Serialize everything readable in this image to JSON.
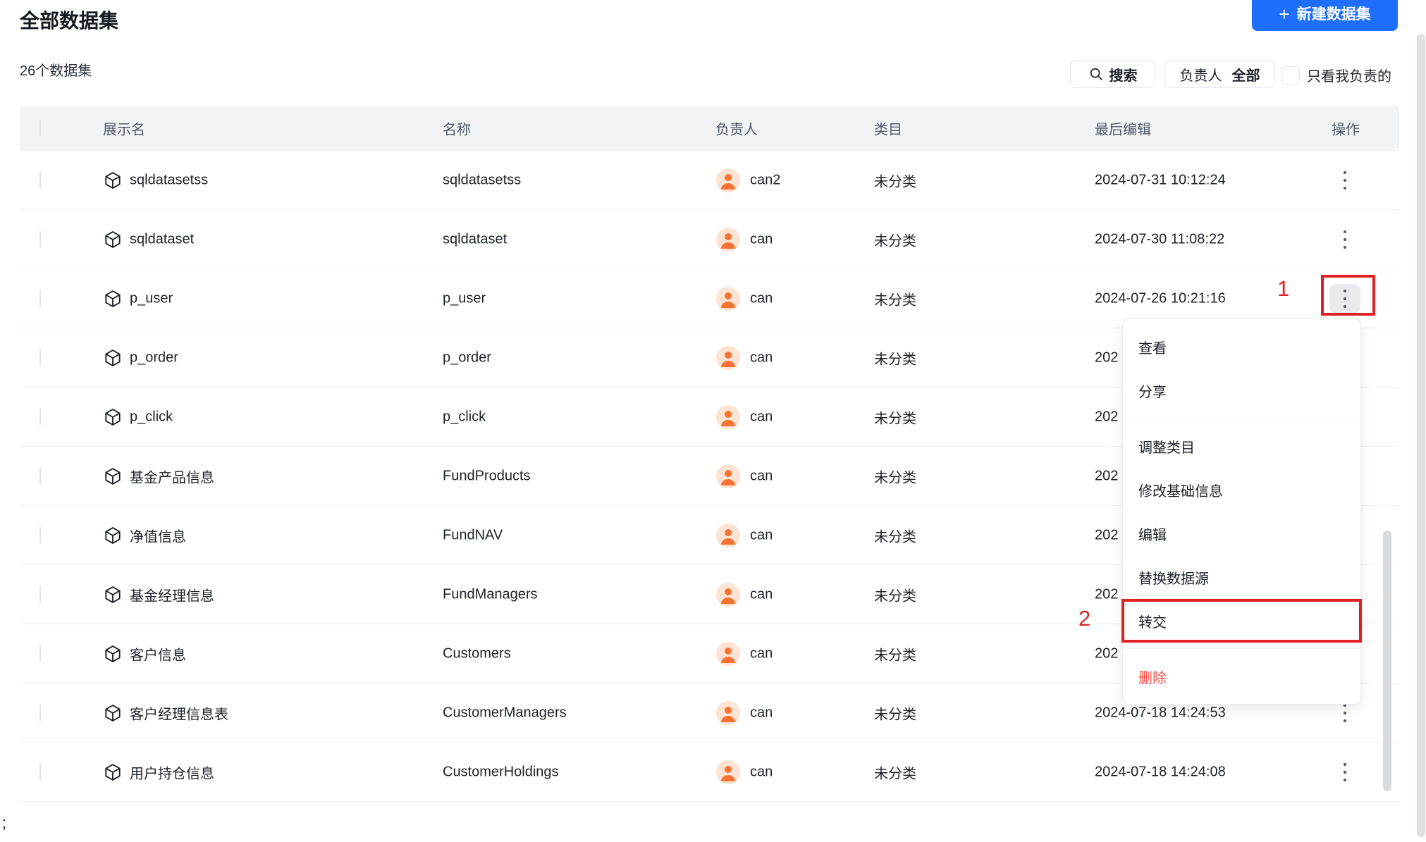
{
  "page": {
    "title": "全部数据集",
    "count_label": "26个数据集",
    "stray_text": ";"
  },
  "toolbar": {
    "plus_icon": "+",
    "new_dataset_label": "新建数据集",
    "search_label": "搜索",
    "owner_filter_prefix": "负责人",
    "owner_filter_value": "全部",
    "only_mine_label": "只看我负责的"
  },
  "table": {
    "headers": {
      "display_name": "展示名",
      "name": "名称",
      "owner": "负责人",
      "category": "类目",
      "last_edited": "最后编辑",
      "actions": "操作"
    },
    "rows": [
      {
        "display_name": "sqldatasetss",
        "name": "sqldatasetss",
        "owner": "can2",
        "category": "未分类",
        "last_edited": "2024-07-31 10:12:24",
        "active": false
      },
      {
        "display_name": "sqldataset",
        "name": "sqldataset",
        "owner": "can",
        "category": "未分类",
        "last_edited": "2024-07-30 11:08:22",
        "active": false
      },
      {
        "display_name": "p_user",
        "name": "p_user",
        "owner": "can",
        "category": "未分类",
        "last_edited": "2024-07-26 10:21:16",
        "active": true
      },
      {
        "display_name": "p_order",
        "name": "p_order",
        "owner": "can",
        "category": "未分类",
        "last_edited": "202",
        "active": false
      },
      {
        "display_name": "p_click",
        "name": "p_click",
        "owner": "can",
        "category": "未分类",
        "last_edited": "202",
        "active": false
      },
      {
        "display_name": "基金产品信息",
        "name": "FundProducts",
        "owner": "can",
        "category": "未分类",
        "last_edited": "202",
        "active": false
      },
      {
        "display_name": "净值信息",
        "name": "FundNAV",
        "owner": "can",
        "category": "未分类",
        "last_edited": "202",
        "active": false
      },
      {
        "display_name": "基金经理信息",
        "name": "FundManagers",
        "owner": "can",
        "category": "未分类",
        "last_edited": "202",
        "active": false
      },
      {
        "display_name": "客户信息",
        "name": "Customers",
        "owner": "can",
        "category": "未分类",
        "last_edited": "202",
        "active": false
      },
      {
        "display_name": "客户经理信息表",
        "name": "CustomerManagers",
        "owner": "can",
        "category": "未分类",
        "last_edited": "2024-07-18 14:24:53",
        "active": false
      },
      {
        "display_name": "用户持仓信息",
        "name": "CustomerHoldings",
        "owner": "can",
        "category": "未分类",
        "last_edited": "2024-07-18 14:24:08",
        "active": false
      }
    ]
  },
  "context_menu": {
    "items": [
      {
        "type": "item",
        "label": "查看"
      },
      {
        "type": "item",
        "label": "分享"
      },
      {
        "type": "divider"
      },
      {
        "type": "item",
        "label": "调整类目"
      },
      {
        "type": "item",
        "label": "修改基础信息"
      },
      {
        "type": "item",
        "label": "编辑"
      },
      {
        "type": "item",
        "label": "替换数据源"
      },
      {
        "type": "item",
        "label": "转交",
        "annotated": true
      },
      {
        "type": "divider"
      },
      {
        "type": "item",
        "label": "删除",
        "danger": true
      }
    ]
  },
  "annotations": {
    "step1": "1",
    "step2": "2",
    "box_color": "#e02222"
  },
  "colors": {
    "accent_blue": "#1e6fff",
    "danger_red": "#f54a45",
    "annotation_red": "#e02222",
    "avatar_orange": "#f77234",
    "avatar_bg": "#fde3d1",
    "header_bg": "#f2f3f5",
    "text_dark": "#1d2129",
    "text_secondary": "#4e5969"
  }
}
